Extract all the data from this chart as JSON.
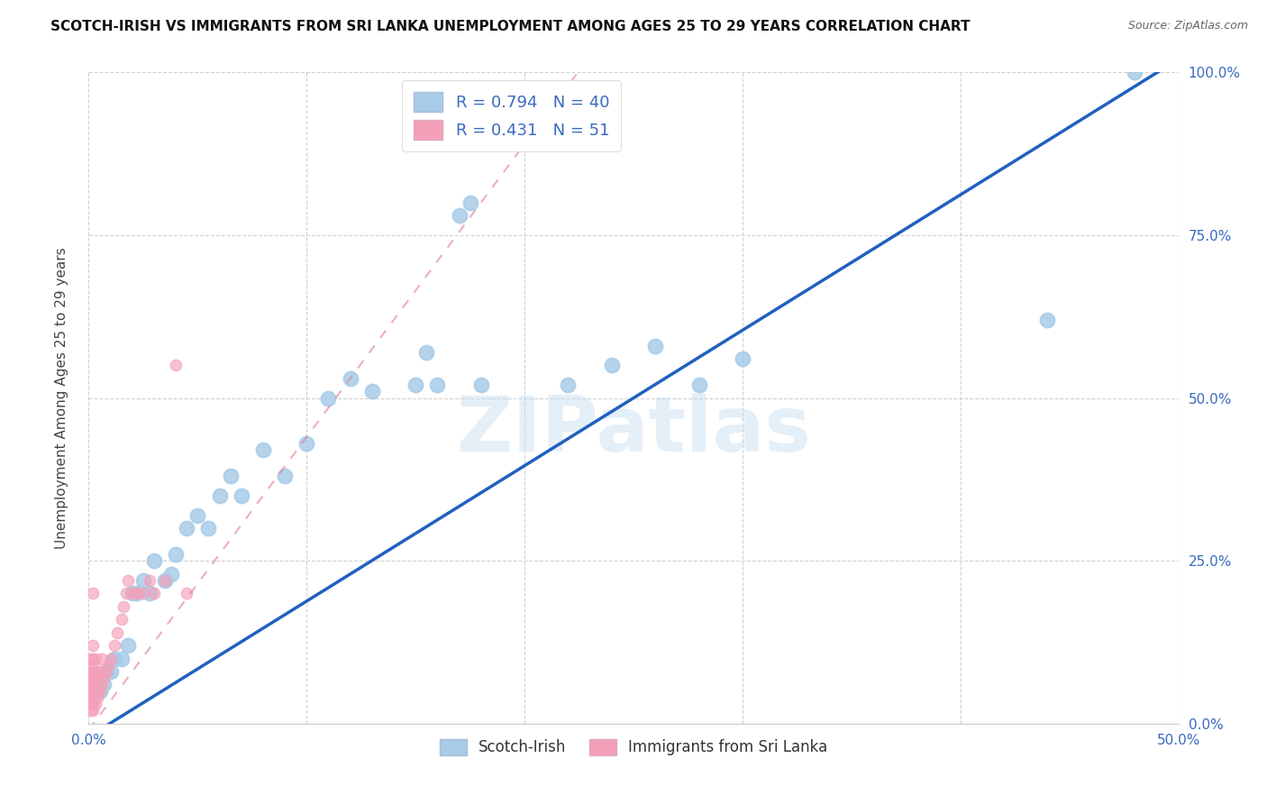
{
  "title": "SCOTCH-IRISH VS IMMIGRANTS FROM SRI LANKA UNEMPLOYMENT AMONG AGES 25 TO 29 YEARS CORRELATION CHART",
  "source": "Source: ZipAtlas.com",
  "ylabel": "Unemployment Among Ages 25 to 29 years",
  "watermark": "ZIPatlas",
  "xlim": [
    0,
    0.5
  ],
  "ylim": [
    0,
    1.0
  ],
  "xticks": [
    0.0,
    0.1,
    0.2,
    0.3,
    0.4,
    0.5
  ],
  "yticks": [
    0.0,
    0.25,
    0.5,
    0.75,
    1.0
  ],
  "xtick_labels": [
    "0.0%",
    "",
    "",
    "",
    "",
    "50.0%"
  ],
  "ytick_labels_right": [
    "0.0%",
    "25.0%",
    "50.0%",
    "75.0%",
    "100.0%"
  ],
  "series1_name": "Scotch-Irish",
  "series1_R": "0.794",
  "series1_N": "40",
  "series1_color": "#a8cce8",
  "series1_line_color": "#2060c0",
  "series2_name": "Immigrants from Sri Lanka",
  "series2_R": "0.431",
  "series2_N": "51",
  "series2_color": "#f4a0b8",
  "series2_line_color": "#e07898",
  "blue_x": [
    0.005,
    0.007,
    0.008,
    0.01,
    0.012,
    0.015,
    0.018,
    0.02,
    0.022,
    0.025,
    0.028,
    0.03,
    0.035,
    0.038,
    0.04,
    0.045,
    0.05,
    0.055,
    0.06,
    0.065,
    0.07,
    0.08,
    0.09,
    0.1,
    0.11,
    0.12,
    0.13,
    0.15,
    0.155,
    0.16,
    0.17,
    0.175,
    0.18,
    0.22,
    0.24,
    0.26,
    0.28,
    0.3,
    0.44,
    0.48
  ],
  "blue_y": [
    0.05,
    0.06,
    0.08,
    0.08,
    0.1,
    0.1,
    0.12,
    0.2,
    0.2,
    0.22,
    0.2,
    0.25,
    0.22,
    0.23,
    0.26,
    0.3,
    0.32,
    0.3,
    0.35,
    0.38,
    0.35,
    0.42,
    0.38,
    0.43,
    0.5,
    0.53,
    0.51,
    0.52,
    0.57,
    0.52,
    0.78,
    0.8,
    0.52,
    0.52,
    0.55,
    0.58,
    0.52,
    0.56,
    0.62,
    1.0
  ],
  "pink_x": [
    0.001,
    0.001,
    0.001,
    0.001,
    0.001,
    0.001,
    0.001,
    0.001,
    0.001,
    0.001,
    0.002,
    0.002,
    0.002,
    0.002,
    0.002,
    0.002,
    0.002,
    0.002,
    0.002,
    0.002,
    0.002,
    0.002,
    0.003,
    0.003,
    0.003,
    0.003,
    0.003,
    0.004,
    0.004,
    0.005,
    0.005,
    0.006,
    0.006,
    0.007,
    0.008,
    0.009,
    0.01,
    0.012,
    0.013,
    0.015,
    0.016,
    0.017,
    0.018,
    0.02,
    0.022,
    0.025,
    0.028,
    0.03,
    0.035,
    0.04,
    0.045
  ],
  "pink_y": [
    0.02,
    0.03,
    0.03,
    0.04,
    0.04,
    0.05,
    0.06,
    0.07,
    0.08,
    0.1,
    0.02,
    0.03,
    0.03,
    0.04,
    0.05,
    0.06,
    0.07,
    0.08,
    0.09,
    0.1,
    0.12,
    0.2,
    0.03,
    0.05,
    0.06,
    0.08,
    0.1,
    0.04,
    0.07,
    0.05,
    0.08,
    0.06,
    0.1,
    0.07,
    0.08,
    0.09,
    0.1,
    0.12,
    0.14,
    0.16,
    0.18,
    0.2,
    0.22,
    0.2,
    0.2,
    0.2,
    0.22,
    0.2,
    0.22,
    0.55,
    0.2
  ]
}
